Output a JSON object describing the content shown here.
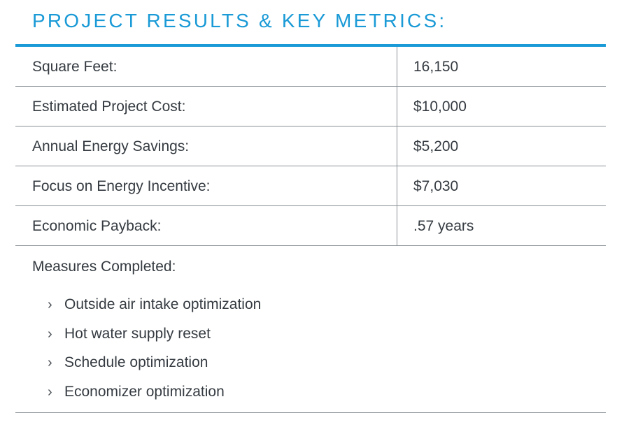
{
  "heading": "PROJECT RESULTS & KEY METRICS:",
  "accent_color": "#1a9ad6",
  "metrics": [
    {
      "label": "Square Feet:",
      "value": "16,150"
    },
    {
      "label": "Estimated Project Cost:",
      "value": "$10,000"
    },
    {
      "label": "Annual Energy Savings:",
      "value": "$5,200"
    },
    {
      "label": "Focus on Energy Incentive:",
      "value": "$7,030"
    },
    {
      "label": "Economic Payback:",
      "value": ".57 years"
    }
  ],
  "measures": {
    "title": "Measures Completed:",
    "bullet_icon": "chevron-right-icon",
    "bullet_glyph": "›",
    "items": [
      "Outside air intake optimization",
      "Hot water supply reset",
      "Schedule optimization",
      "Economizer optimization"
    ]
  }
}
